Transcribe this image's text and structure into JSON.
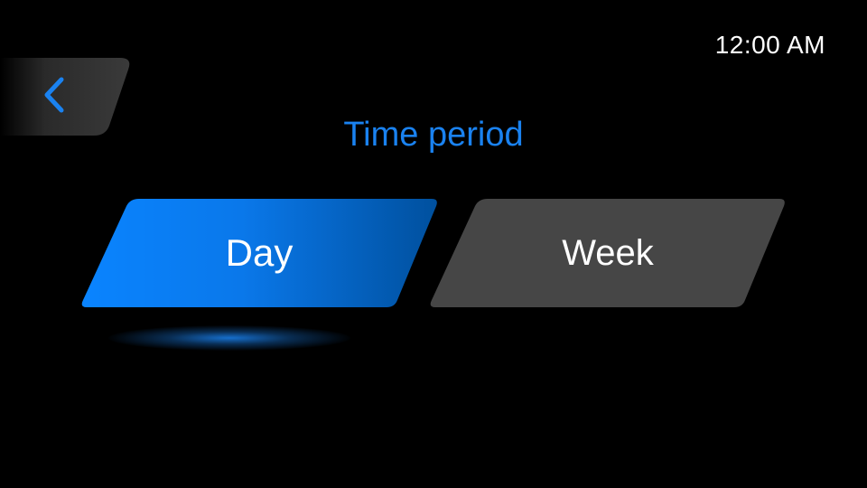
{
  "status_bar": {
    "clock": "12:00 AM"
  },
  "header": {
    "back_icon": "chevron-left-icon",
    "title": "Time period"
  },
  "options": [
    {
      "label": "Day",
      "selected": true
    },
    {
      "label": "Week",
      "selected": false
    }
  ],
  "colors": {
    "background": "#000000",
    "accent": "#1a82f0",
    "selected_gradient_start": "#0a84ff",
    "selected_gradient_end": "#0050a0",
    "unselected": "#464646",
    "back_button": "#333333",
    "text": "#ffffff"
  }
}
